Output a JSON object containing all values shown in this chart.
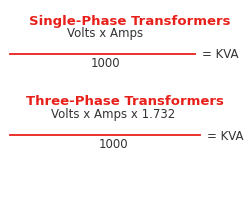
{
  "bg_color": "#ffffff",
  "title1": "Single-Phase Transformers",
  "title1_color": "#e8201a",
  "numerator1": "Volts x Amps",
  "denominator1": "1000",
  "result1": "= KVA",
  "title2": "Three-Phase Transformers",
  "title2_color": "#e8201a",
  "numerator2": "Volts x Amps x 1.732",
  "denominator2": "1000",
  "result2": "= KVA",
  "text_color": "#333333",
  "line_color": "#e8201a",
  "title_fontsize": 9.5,
  "formula_fontsize": 8.5,
  "result_fontsize": 8.5
}
